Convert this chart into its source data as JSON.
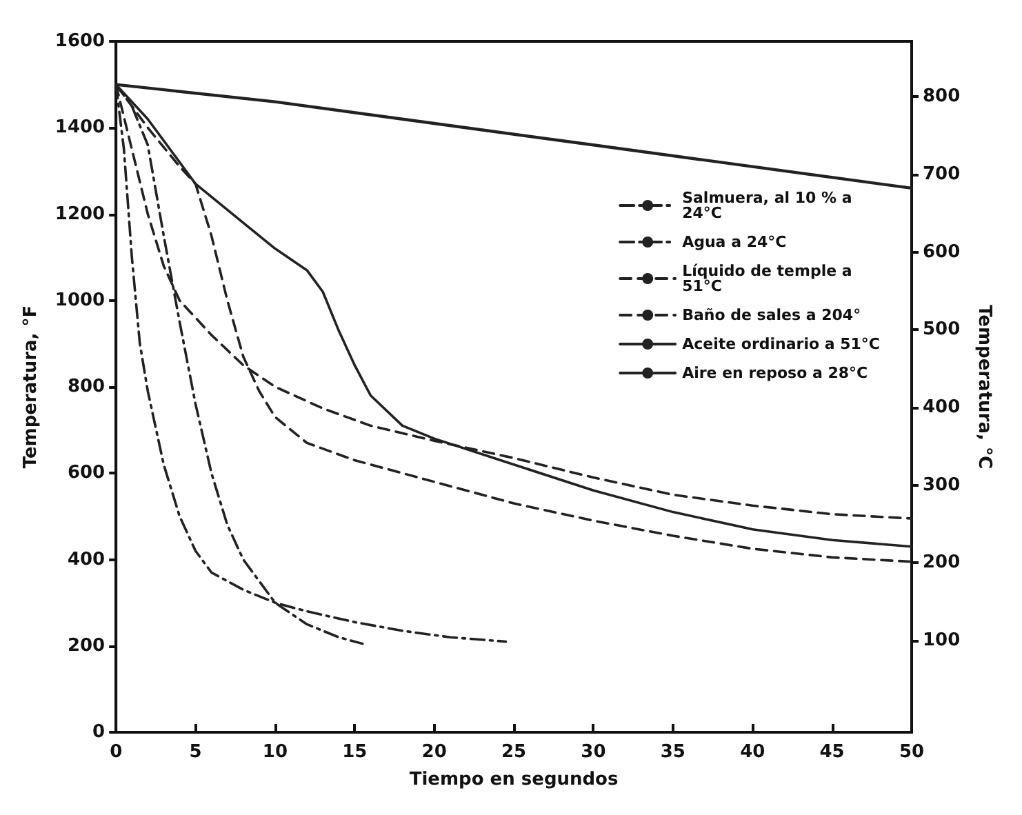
{
  "chart_data": {
    "type": "line",
    "xlabel": "Tiempo en segundos",
    "ylabel": "Temperatura, °F",
    "y2label": "Temperatura, °C",
    "xlim": [
      0,
      50
    ],
    "xticks": [
      0,
      5,
      10,
      15,
      20,
      25,
      30,
      35,
      40,
      45,
      50
    ],
    "ylim": [
      0,
      1600
    ],
    "yticks": [
      0,
      200,
      400,
      600,
      800,
      1000,
      1200,
      1400,
      1600
    ],
    "y2lim": [
      -17.8,
      871.1
    ],
    "y2ticks": [
      100,
      200,
      300,
      400,
      500,
      600,
      700,
      800
    ],
    "grid": false,
    "legend": "top right",
    "marker": "none",
    "series": [
      {
        "name": "Salmuera, al 10 % a 24°C",
        "color": "#222222",
        "line_style": "dashdot",
        "x": [
          0,
          0.5,
          1,
          1.5,
          2,
          3,
          4,
          5,
          6,
          8,
          10,
          12,
          15,
          18,
          21,
          24.5
        ],
        "values": [
          1500,
          1350,
          1100,
          900,
          790,
          620,
          500,
          420,
          370,
          330,
          300,
          280,
          255,
          235,
          220,
          210
        ]
      },
      {
        "name": "Agua a 24°C",
        "color": "#222222",
        "line_style": "dashdot",
        "x": [
          0,
          1,
          2,
          3,
          4,
          5,
          6,
          7,
          8,
          10,
          12,
          14,
          15.5
        ],
        "values": [
          1500,
          1450,
          1360,
          1150,
          950,
          760,
          600,
          480,
          400,
          300,
          250,
          220,
          205
        ]
      },
      {
        "name": "Líquido de temple a 51°C",
        "color": "#222222",
        "line_style": "dashed",
        "x": [
          0,
          2,
          4,
          5,
          6,
          7,
          8,
          9,
          10,
          12,
          15,
          20,
          25,
          30,
          35,
          40,
          45,
          50
        ],
        "values": [
          1500,
          1400,
          1310,
          1270,
          1150,
          1000,
          870,
          790,
          730,
          670,
          630,
          580,
          530,
          490,
          455,
          425,
          405,
          395
        ]
      },
      {
        "name": "Baño de sales a 204°",
        "color": "#222222",
        "line_style": "dashed",
        "x": [
          0,
          1,
          2,
          3,
          4,
          6,
          8,
          10,
          13,
          16,
          20,
          25,
          30,
          35,
          40,
          45,
          50
        ],
        "values": [
          1500,
          1350,
          1200,
          1080,
          1000,
          920,
          850,
          800,
          750,
          710,
          675,
          635,
          590,
          550,
          525,
          505,
          495
        ]
      },
      {
        "name": "Aceite ordinario a 51°C",
        "color": "#222222",
        "line_style": "solid",
        "x": [
          0,
          2,
          5,
          8,
          10,
          12,
          13,
          14,
          15,
          16,
          18,
          20,
          25,
          30,
          35,
          40,
          45,
          50
        ],
        "values": [
          1500,
          1420,
          1270,
          1180,
          1120,
          1070,
          1020,
          930,
          850,
          780,
          710,
          680,
          620,
          560,
          510,
          470,
          445,
          430
        ]
      },
      {
        "name": "Aire en reposo a 28°C",
        "color": "#222222",
        "line_style": "solid",
        "x": [
          0,
          10,
          20,
          30,
          40,
          50
        ],
        "values": [
          1500,
          1460,
          1410,
          1360,
          1310,
          1260
        ]
      }
    ]
  }
}
